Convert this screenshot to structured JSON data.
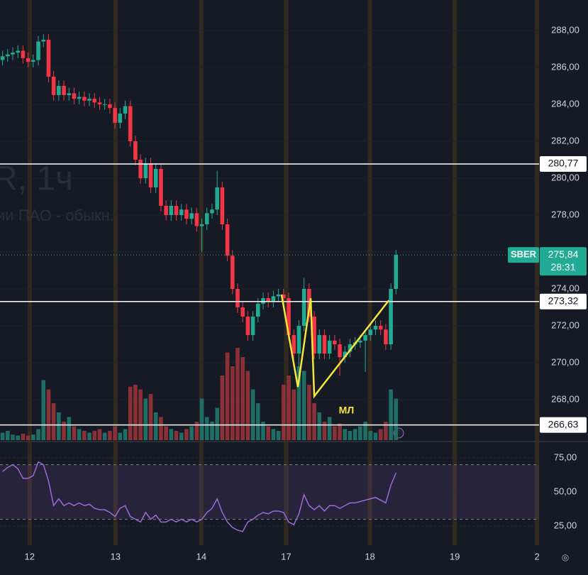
{
  "chart_data": {
    "type": "candlestick",
    "watermark": [
      "R, 1ч",
      "ии ПАО - обыкн."
    ],
    "xlim": [
      0,
      105.5
    ],
    "xticks": [
      {
        "value": 5.8,
        "label": "12"
      },
      {
        "value": 22.6,
        "label": "13"
      },
      {
        "value": 39.4,
        "label": "14"
      },
      {
        "value": 56.0,
        "label": "17"
      },
      {
        "value": 72.4,
        "label": "18"
      },
      {
        "value": 89.0,
        "label": "19"
      },
      {
        "value": 105.1,
        "label": "2"
      }
    ],
    "ylim": [
      265.81,
      289.65
    ],
    "yticks": [
      {
        "value": 268,
        "label": "268,00"
      },
      {
        "value": 270,
        "label": "270,00"
      },
      {
        "value": 272,
        "label": "272,00"
      },
      {
        "value": 274,
        "label": "274,00"
      },
      {
        "value": 276,
        "label": "276,00"
      },
      {
        "value": 278,
        "label": "278,00"
      },
      {
        "value": 280,
        "label": "280,00"
      },
      {
        "value": 282,
        "label": "282,00"
      },
      {
        "value": 284,
        "label": "284,00"
      },
      {
        "value": 286,
        "label": "286,00"
      },
      {
        "value": 288,
        "label": "288,00"
      }
    ],
    "up_color": "#22ab94",
    "down_color": "#f23645",
    "open": [
      286.4,
      286.6,
      286.7,
      286.8,
      286.9,
      286.5,
      286.3,
      286.4,
      287.4,
      287.5,
      285.5,
      284.5,
      285.0,
      284.5,
      284.6,
      284.3,
      284.4,
      284.2,
      284.3,
      284.1,
      284.0,
      284.0,
      283.8,
      283.0,
      283.5,
      283.9,
      282.0,
      281.0,
      280.0,
      280.8,
      279.5,
      280.5,
      278.5,
      278.0,
      278.5,
      278.0,
      278.3,
      277.8,
      278.1,
      277.4,
      277.5,
      278.1,
      278.3,
      279.5,
      277.5,
      275.8,
      274.0,
      273.0,
      272.5,
      271.5,
      272.5,
      273.2,
      273.5,
      273.3,
      273.6,
      273.7,
      273.5,
      271.5,
      270.5,
      272.0,
      274.0,
      272.5,
      270.5,
      271.5,
      270.5,
      271.2,
      271.0,
      270.3,
      270.6,
      271.0,
      271.1,
      271.2,
      271.5,
      271.8,
      272.0,
      271.8,
      271.0,
      274.0
    ],
    "high": [
      286.9,
      287.0,
      287.1,
      287.2,
      287.2,
      286.8,
      286.7,
      287.7,
      287.8,
      287.8,
      285.8,
      285.3,
      285.3,
      284.9,
      284.9,
      284.7,
      284.7,
      284.6,
      284.6,
      284.4,
      284.3,
      284.3,
      284.1,
      283.8,
      284.2,
      284.2,
      282.3,
      281.3,
      281.1,
      281.1,
      280.8,
      280.8,
      278.8,
      278.8,
      278.8,
      278.6,
      278.6,
      278.4,
      278.4,
      277.8,
      278.4,
      278.6,
      280.4,
      279.8,
      277.8,
      276.1,
      274.3,
      273.3,
      272.8,
      272.8,
      273.5,
      273.8,
      273.8,
      273.9,
      274.0,
      274.0,
      273.8,
      271.8,
      272.3,
      274.6,
      274.3,
      272.8,
      271.8,
      271.8,
      271.5,
      271.5,
      271.3,
      270.9,
      271.3,
      271.4,
      271.5,
      271.8,
      272.1,
      272.3,
      272.3,
      272.1,
      274.3,
      276.1
    ],
    "low": [
      286.1,
      286.3,
      286.4,
      286.5,
      286.2,
      286.0,
      286.0,
      286.1,
      287.1,
      285.2,
      284.2,
      284.2,
      284.2,
      284.2,
      284.0,
      284.0,
      283.9,
      283.9,
      283.8,
      283.7,
      283.7,
      283.5,
      282.7,
      282.7,
      283.2,
      281.7,
      280.7,
      279.7,
      279.7,
      279.2,
      279.2,
      278.2,
      277.7,
      277.7,
      277.7,
      277.7,
      277.5,
      277.5,
      277.1,
      276.0,
      277.2,
      277.8,
      278.0,
      277.2,
      275.5,
      273.7,
      272.7,
      272.2,
      271.2,
      271.2,
      272.2,
      272.9,
      273.0,
      273.0,
      273.3,
      273.2,
      271.2,
      270.2,
      269.0,
      271.7,
      272.2,
      270.2,
      270.2,
      270.2,
      270.2,
      270.7,
      269.3,
      270.0,
      270.3,
      270.7,
      270.8,
      269.5,
      271.2,
      271.5,
      271.5,
      270.7,
      270.7,
      273.7
    ],
    "close": [
      286.6,
      286.7,
      286.8,
      286.9,
      286.5,
      286.3,
      286.4,
      287.4,
      287.5,
      285.5,
      284.5,
      285.0,
      284.5,
      284.6,
      284.3,
      284.4,
      284.2,
      284.3,
      284.1,
      284.0,
      284.0,
      283.8,
      283.0,
      283.5,
      283.9,
      282.0,
      281.0,
      280.0,
      280.8,
      279.5,
      280.5,
      278.5,
      278.0,
      278.5,
      278.0,
      278.3,
      277.8,
      278.1,
      277.4,
      277.5,
      278.1,
      278.3,
      279.5,
      277.5,
      275.8,
      274.0,
      273.0,
      272.5,
      271.5,
      272.5,
      273.2,
      273.5,
      273.3,
      273.6,
      273.7,
      273.5,
      271.5,
      270.5,
      272.0,
      274.0,
      272.5,
      270.5,
      271.5,
      270.5,
      271.2,
      271.0,
      270.3,
      270.6,
      271.0,
      271.1,
      271.2,
      271.5,
      271.8,
      272.0,
      271.8,
      271.0,
      274.0,
      275.84
    ],
    "volume": [
      8,
      10,
      6,
      5,
      7,
      5,
      6,
      12,
      65,
      55,
      40,
      30,
      20,
      25,
      15,
      12,
      10,
      8,
      10,
      12,
      8,
      10,
      15,
      8,
      12,
      58,
      60,
      55,
      45,
      50,
      30,
      25,
      15,
      12,
      10,
      8,
      12,
      15,
      20,
      45,
      25,
      20,
      35,
      70,
      95,
      80,
      100,
      90,
      75,
      55,
      40,
      20,
      15,
      12,
      10,
      60,
      70,
      55,
      80,
      75,
      60,
      40,
      30,
      20,
      25,
      15,
      18,
      12,
      10,
      12,
      15,
      20,
      10,
      8,
      12,
      20,
      55,
      45
    ],
    "levels": [
      {
        "value": 280.77,
        "label": "280,77"
      },
      {
        "value": 273.32,
        "label": "273,32"
      },
      {
        "value": 266.63,
        "label": "266,63"
      }
    ],
    "last": {
      "symbol": "SBER",
      "value": 275.84,
      "label": "275,84",
      "countdown": "28:31"
    },
    "drawing": {
      "color": "#f5e73b",
      "x": [
        55.1,
        58.3,
        60.8,
        61.5,
        76.1
      ],
      "y": [
        273.69,
        268.69,
        273.5,
        268.19,
        273.38
      ],
      "label": "МЛ",
      "label_x": 67.8,
      "label_y": 267.4
    },
    "rsi": {
      "color": "#9a6bd8",
      "ylim": [
        11,
        85.4
      ],
      "band": [
        30,
        70
      ],
      "yticks": [
        {
          "value": 75,
          "label": "75,00"
        },
        {
          "value": 50,
          "label": "50,00"
        },
        {
          "value": 25,
          "label": "25,00"
        }
      ],
      "values": [
        65,
        68,
        70,
        67,
        60,
        60,
        62,
        72,
        70,
        58,
        40,
        45,
        40,
        42,
        40,
        42,
        40,
        41,
        38,
        37,
        37,
        35,
        32,
        38,
        40,
        32,
        30,
        28,
        35,
        30,
        33,
        28,
        28,
        30,
        28,
        30,
        28,
        30,
        28,
        30,
        35,
        38,
        45,
        35,
        28,
        24,
        22,
        21,
        28,
        30,
        33,
        35,
        34,
        36,
        36,
        35,
        28,
        26,
        34,
        48,
        40,
        37,
        40,
        36,
        40,
        40,
        38,
        40,
        42,
        42,
        43,
        44,
        45,
        46,
        44,
        42,
        55,
        64
      ]
    }
  }
}
